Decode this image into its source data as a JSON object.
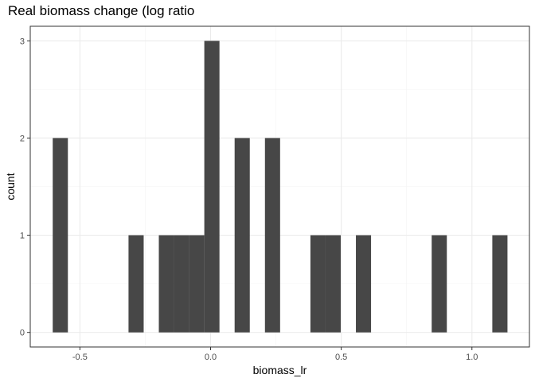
{
  "chart_data": {
    "type": "bar",
    "title": "Real biomass change (log ratio",
    "xlabel": "biomass_lr",
    "ylabel": "count",
    "xlim": [
      -0.69,
      1.22
    ],
    "ylim": [
      -0.15,
      3.15
    ],
    "bin_width": 0.058,
    "bins": [
      {
        "center": -0.575,
        "count": 2
      },
      {
        "center": -0.285,
        "count": 1
      },
      {
        "center": -0.169,
        "count": 1
      },
      {
        "center": -0.111,
        "count": 1
      },
      {
        "center": -0.053,
        "count": 1
      },
      {
        "center": 0.005,
        "count": 3
      },
      {
        "center": 0.121,
        "count": 2
      },
      {
        "center": 0.237,
        "count": 2
      },
      {
        "center": 0.411,
        "count": 1
      },
      {
        "center": 0.469,
        "count": 1
      },
      {
        "center": 0.585,
        "count": 1
      },
      {
        "center": 0.875,
        "count": 1
      },
      {
        "center": 1.107,
        "count": 1
      }
    ],
    "x_ticks": [
      -0.5,
      0.0,
      0.5,
      1.0
    ],
    "x_tick_labels": [
      "-0.5",
      "0.0",
      "0.5",
      "1.0"
    ],
    "y_ticks": [
      0,
      1,
      2,
      3
    ],
    "y_tick_labels": [
      "0",
      "1",
      "2",
      "3"
    ],
    "bar_color": "#474747",
    "panel_background": "#ffffff",
    "grid_major_color": "#ebebeb",
    "grid_minor_color": "#f4f4f4",
    "border_color": "#333333",
    "grid": true,
    "legend": "none"
  }
}
